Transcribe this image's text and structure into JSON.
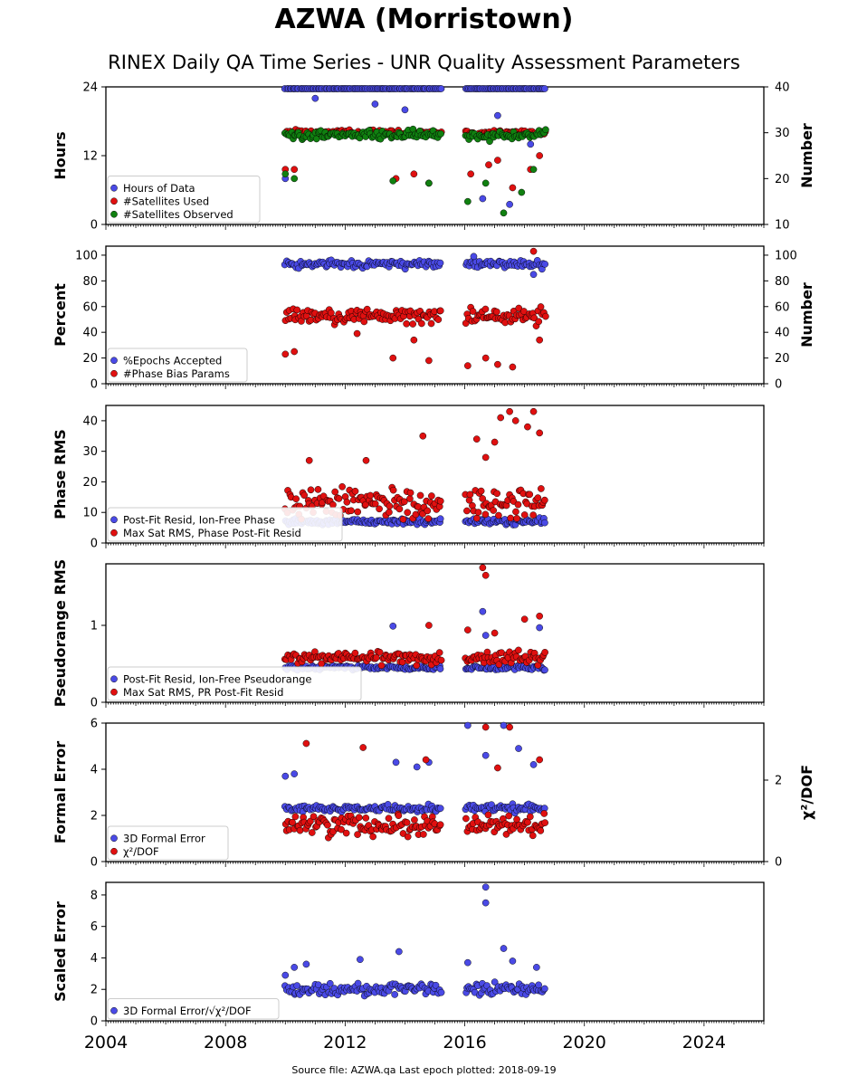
{
  "header": {
    "title": "AZWA (Morristown)",
    "subtitle": "RINEX Daily QA Time Series - UNR Quality Assessment Parameters"
  },
  "footer": {
    "text": "Source file: AZWA.qa Last epoch plotted: 2018-09-19"
  },
  "colors": {
    "blue": "#4a4ae6",
    "red": "#e01010",
    "green": "#108010"
  },
  "chart_data": {
    "type": "scatter",
    "x_range": [
      "2004-01-01",
      "2026-01-01"
    ],
    "x_ticks": [
      "2004",
      "2008",
      "2012",
      "2016",
      "2020",
      "2024"
    ],
    "data_segments": [
      [
        "2010-01-01",
        "2015-04-01"
      ],
      [
        "2016-01-15",
        "2018-09-19"
      ]
    ],
    "panels": [
      {
        "ylabel": "Hours",
        "ylim": [
          0,
          24
        ],
        "yticks": [
          "0",
          "12",
          "24"
        ],
        "ylabel_right": "Number",
        "ylim_right": [
          10,
          40
        ],
        "yticks_right": [
          "10",
          "20",
          "30",
          "40"
        ],
        "series": [
          {
            "name": "Hours of Data",
            "color": "blue",
            "axis": "left",
            "typical": 24,
            "spread": 0.3,
            "outliers": [
              [
                2010.0,
                8
              ],
              [
                2011.0,
                22
              ],
              [
                2013.0,
                21
              ],
              [
                2014.0,
                20
              ],
              [
                2016.6,
                4.5
              ],
              [
                2017.1,
                19
              ],
              [
                2017.5,
                3.5
              ],
              [
                2018.2,
                14
              ]
            ]
          },
          {
            "name": "#Satellites Used",
            "color": "red",
            "axis": "right",
            "typical": 30,
            "spread": 0.6,
            "outliers": [
              [
                2010.0,
                22
              ],
              [
                2010.3,
                22
              ],
              [
                2013.7,
                20
              ],
              [
                2014.3,
                21
              ],
              [
                2014.8,
                19
              ],
              [
                2016.2,
                21
              ],
              [
                2016.8,
                23
              ],
              [
                2017.1,
                24
              ],
              [
                2017.6,
                18
              ],
              [
                2018.2,
                22
              ],
              [
                2018.5,
                25
              ]
            ]
          },
          {
            "name": "#Satellites Observed",
            "color": "green",
            "axis": "right",
            "typical": 29.5,
            "spread": 1.0,
            "outliers": [
              [
                2010.0,
                21
              ],
              [
                2010.3,
                20
              ],
              [
                2013.6,
                19.5
              ],
              [
                2014.8,
                19
              ],
              [
                2016.1,
                15
              ],
              [
                2016.7,
                19
              ],
              [
                2017.3,
                12.5
              ],
              [
                2017.9,
                17
              ],
              [
                2018.3,
                22
              ]
            ]
          }
        ]
      },
      {
        "ylabel": "Percent",
        "ylim": [
          0,
          107
        ],
        "yticks": [
          "0",
          "20",
          "40",
          "60",
          "80",
          "100"
        ],
        "ylabel_right": "Number",
        "ylim_right": [
          0,
          107
        ],
        "yticks_right": [
          "0",
          "20",
          "40",
          "60",
          "80",
          "100"
        ],
        "series": [
          {
            "name": "%Epochs Accepted",
            "color": "blue",
            "axis": "left",
            "typical": 93,
            "spread": 3,
            "outliers": [
              [
                2016.3,
                99
              ],
              [
                2018.3,
                85
              ]
            ]
          },
          {
            "name": "#Phase Bias Params",
            "color": "red",
            "axis": "right",
            "typical": 53,
            "spread": 6,
            "outliers": [
              [
                2010.0,
                23
              ],
              [
                2010.3,
                25
              ],
              [
                2012.4,
                39
              ],
              [
                2013.6,
                20
              ],
              [
                2014.3,
                34
              ],
              [
                2014.8,
                18
              ],
              [
                2016.1,
                14
              ],
              [
                2016.7,
                20
              ],
              [
                2017.1,
                15
              ],
              [
                2017.6,
                13
              ],
              [
                2018.3,
                103
              ],
              [
                2018.5,
                34
              ]
            ]
          }
        ]
      },
      {
        "ylabel": "Phase RMS",
        "ylim": [
          0,
          45
        ],
        "yticks": [
          "0",
          "10",
          "20",
          "30",
          "40"
        ],
        "series": [
          {
            "name": "Post-Fit Resid, Ion-Free Phase",
            "color": "blue",
            "axis": "left",
            "typical": 7,
            "spread": 1,
            "outliers": []
          },
          {
            "name": "Max Sat RMS, Phase Post-Fit Resid",
            "color": "red",
            "axis": "left",
            "typical": 13,
            "spread": 5,
            "outliers": [
              [
                2010.8,
                27
              ],
              [
                2012.7,
                27
              ],
              [
                2014.6,
                35
              ],
              [
                2016.4,
                34
              ],
              [
                2016.7,
                28
              ],
              [
                2017.0,
                33
              ],
              [
                2017.2,
                41
              ],
              [
                2017.5,
                43
              ],
              [
                2017.7,
                40
              ],
              [
                2018.1,
                38
              ],
              [
                2018.3,
                43
              ],
              [
                2018.5,
                36
              ]
            ]
          }
        ]
      },
      {
        "ylabel": "Pseudorange RMS",
        "ylim": [
          0,
          1.8
        ],
        "yticks": [
          "0",
          "1"
        ],
        "series": [
          {
            "name": "Post-Fit Resid, Ion-Free Pseudorange",
            "color": "blue",
            "axis": "left",
            "typical": 0.45,
            "spread": 0.03,
            "outliers": [
              [
                2013.6,
                0.99
              ],
              [
                2016.6,
                1.18
              ],
              [
                2016.7,
                0.87
              ],
              [
                2018.5,
                0.97
              ]
            ]
          },
          {
            "name": "Max Sat RMS, PR Post-Fit Resid",
            "color": "red",
            "axis": "left",
            "typical": 0.58,
            "spread": 0.08,
            "outliers": [
              [
                2014.8,
                1.0
              ],
              [
                2016.1,
                0.94
              ],
              [
                2016.6,
                1.75
              ],
              [
                2016.7,
                1.65
              ],
              [
                2017.0,
                0.9
              ],
              [
                2018.0,
                1.08
              ],
              [
                2018.5,
                1.12
              ]
            ]
          }
        ]
      },
      {
        "ylabel": "Formal Error",
        "ylim": [
          0,
          6
        ],
        "yticks": [
          "0",
          "2",
          "4",
          "6"
        ],
        "ylabel_right": "χ²/DOF",
        "ylim_right": [
          0,
          3.4
        ],
        "yticks_right": [
          "0",
          "2"
        ],
        "series": [
          {
            "name": "3D Formal Error",
            "color": "blue",
            "axis": "left",
            "typical": 2.3,
            "spread": 0.15,
            "outliers": [
              [
                2010.0,
                3.7
              ],
              [
                2010.3,
                3.8
              ],
              [
                2013.7,
                4.3
              ],
              [
                2014.4,
                4.1
              ],
              [
                2014.8,
                4.3
              ],
              [
                2016.1,
                5.9
              ],
              [
                2016.7,
                4.6
              ],
              [
                2017.3,
                5.9
              ],
              [
                2017.8,
                4.9
              ],
              [
                2018.3,
                4.2
              ]
            ]
          },
          {
            "name": "χ²/DOF",
            "color": "red",
            "axis": "right",
            "typical": 0.9,
            "spread": 0.25,
            "outliers": [
              [
                2010.7,
                2.9
              ],
              [
                2012.6,
                2.8
              ],
              [
                2014.7,
                2.5
              ],
              [
                2016.7,
                3.3
              ],
              [
                2017.1,
                2.3
              ],
              [
                2017.5,
                3.3
              ],
              [
                2018.5,
                2.5
              ]
            ]
          }
        ]
      },
      {
        "ylabel": "Scaled Error",
        "ylim": [
          0,
          8.8
        ],
        "yticks": [
          "0",
          "2",
          "4",
          "6",
          "8"
        ],
        "series": [
          {
            "name": "3D Formal Error/√χ²/DOF",
            "color": "blue",
            "axis": "left",
            "typical": 2.0,
            "spread": 0.35,
            "outliers": [
              [
                2010.0,
                2.9
              ],
              [
                2010.3,
                3.4
              ],
              [
                2010.7,
                3.6
              ],
              [
                2012.5,
                3.9
              ],
              [
                2013.8,
                4.4
              ],
              [
                2016.1,
                3.7
              ],
              [
                2016.7,
                8.5
              ],
              [
                2016.7,
                7.5
              ],
              [
                2017.3,
                4.6
              ],
              [
                2017.6,
                3.8
              ],
              [
                2018.4,
                3.4
              ]
            ]
          }
        ]
      }
    ]
  }
}
